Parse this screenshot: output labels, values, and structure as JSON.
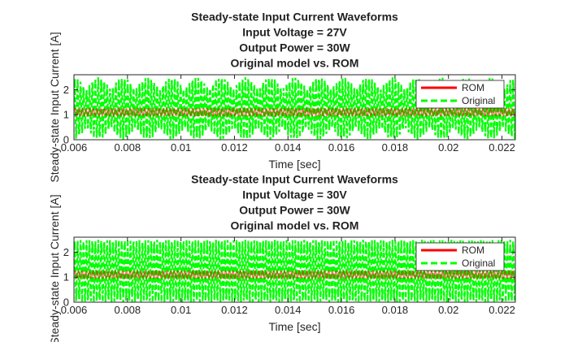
{
  "chart_data": [
    {
      "type": "line",
      "title": [
        "Steady-state Input Current Waveforms",
        "Input Voltage = 27V",
        "Output Power = 30W",
        "Original model vs. ROM"
      ],
      "xlabel": "Time [sec]",
      "ylabel": "Steady-state Input Current [A]",
      "xlim": [
        0.006,
        0.0225
      ],
      "ylim": [
        0,
        2.6
      ],
      "xticks": [
        0.006,
        0.008,
        0.01,
        0.012,
        0.014,
        0.016,
        0.018,
        0.02,
        0.022
      ],
      "xticklabels": [
        "0.006",
        "0.008",
        "0.01",
        "0.012",
        "0.014",
        "0.016",
        "0.018",
        "0.02",
        "0.022"
      ],
      "yticks": [
        0,
        1,
        2
      ],
      "yticklabels": [
        "0",
        "1",
        "2"
      ],
      "grid": false,
      "legend": "top-right",
      "series": [
        {
          "name": "ROM",
          "color": "#ff0000",
          "style": "solid",
          "envelope": [
            [
              0.006,
              0.95,
              1.25
            ],
            [
              0.0225,
              0.95,
              1.25
            ]
          ]
        },
        {
          "name": "Original",
          "color": "#00ff00",
          "style": "dashed",
          "envelope": [
            [
              0.006,
              0.0,
              2.5
            ],
            [
              0.0225,
              0.0,
              2.5
            ]
          ]
        }
      ]
    },
    {
      "type": "line",
      "title": [
        "Steady-state Input Current Waveforms",
        "Input Voltage = 30V",
        "Output Power = 30W",
        "Original model vs. ROM"
      ],
      "xlabel": "Time [sec]",
      "ylabel": "Steady-state Input Current [A]",
      "xlim": [
        0.006,
        0.0225
      ],
      "ylim": [
        0,
        2.6
      ],
      "xticks": [
        0.006,
        0.008,
        0.01,
        0.012,
        0.014,
        0.016,
        0.018,
        0.02,
        0.022
      ],
      "xticklabels": [
        "0.006",
        "0.008",
        "0.01",
        "0.012",
        "0.014",
        "0.016",
        "0.018",
        "0.02",
        "0.022"
      ],
      "yticks": [
        0,
        1,
        2
      ],
      "yticklabels": [
        "0",
        "1",
        "2"
      ],
      "grid": false,
      "legend": "top-right",
      "series": [
        {
          "name": "ROM",
          "color": "#ff0000",
          "style": "solid",
          "envelope": [
            [
              0.006,
              0.95,
              1.25
            ],
            [
              0.0225,
              0.95,
              1.25
            ]
          ]
        },
        {
          "name": "Original",
          "color": "#00ff00",
          "style": "dashed",
          "envelope": [
            [
              0.006,
              0.0,
              2.5
            ],
            [
              0.0225,
              0.0,
              2.5
            ]
          ]
        }
      ]
    }
  ]
}
